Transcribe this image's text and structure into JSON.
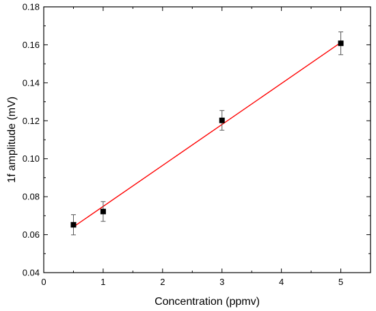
{
  "chart_data": {
    "type": "scatter",
    "title": "",
    "xlabel": "Concentration (ppmv)",
    "ylabel": "1f amplitude (mV)",
    "xlim": [
      0,
      5.5
    ],
    "ylim": [
      0.04,
      0.18
    ],
    "x_ticks": [
      "0",
      "1",
      "2",
      "3",
      "4",
      "5"
    ],
    "y_ticks": [
      "0.04",
      "0.06",
      "0.08",
      "0.10",
      "0.12",
      "0.14",
      "0.16",
      "0.18"
    ],
    "grid": false,
    "legend": "none",
    "series": [
      {
        "marker": "square",
        "color": "#000000",
        "x": [
          0.5,
          1,
          3,
          5
        ],
        "y": [
          0.0652,
          0.0722,
          0.1202,
          0.1608
        ],
        "y_err": [
          0.0053,
          0.0052,
          0.0052,
          0.006
        ],
        "error_bar_color": "#555555"
      }
    ],
    "fit_line": {
      "color": "#ff0000",
      "x": [
        0.5,
        5
      ],
      "y": [
        0.0641,
        0.1612
      ]
    }
  }
}
